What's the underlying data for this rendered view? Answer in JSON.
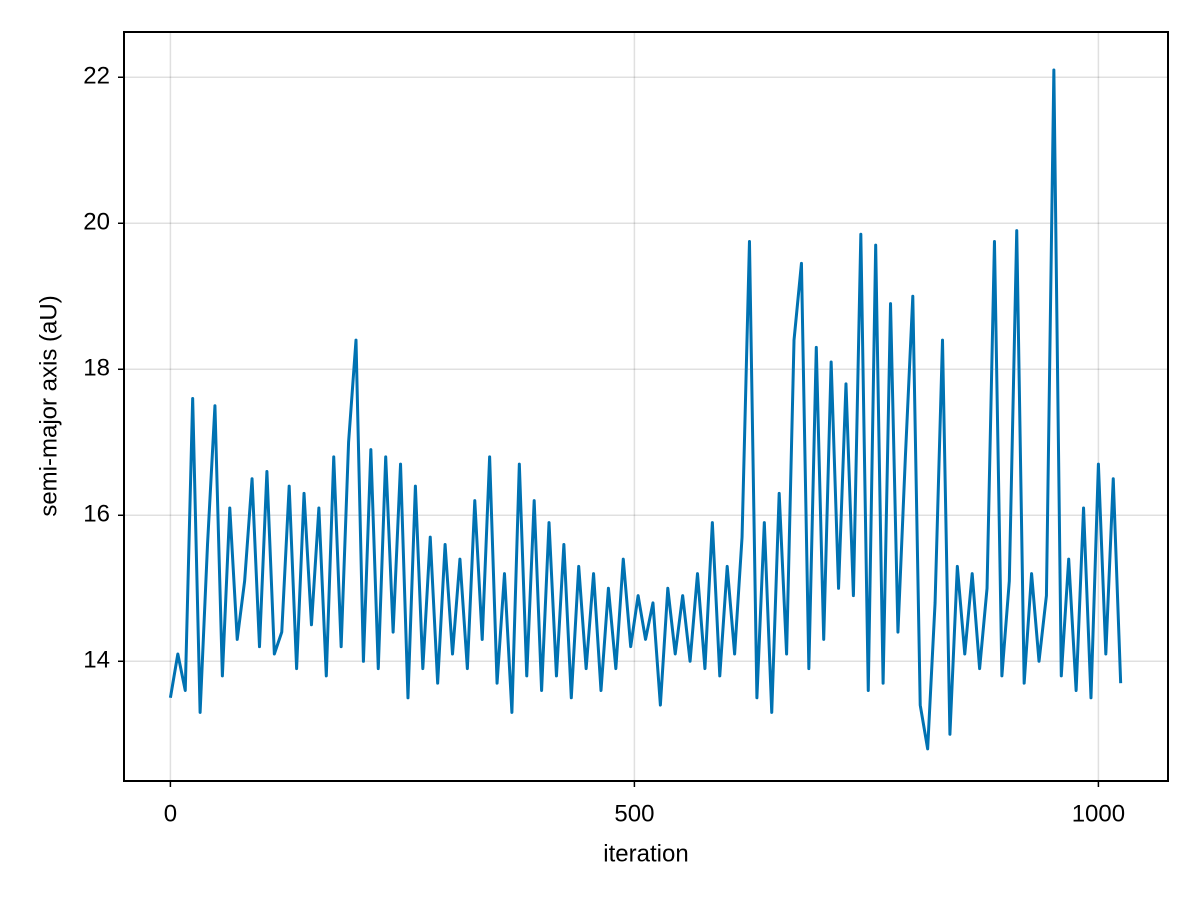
{
  "chart_data": {
    "type": "line",
    "xlabel": "iteration",
    "ylabel": "semi-major axis (aU)",
    "xlim": [
      -50,
      1075
    ],
    "ylim": [
      12.36,
      22.62
    ],
    "xticks": [
      0,
      500,
      1000
    ],
    "yticks": [
      14,
      16,
      18,
      20,
      22
    ],
    "grid": true,
    "series": [
      {
        "color": "#0072b2",
        "x": [
          0,
          8,
          16,
          24,
          32,
          40,
          48,
          56,
          64,
          72,
          80,
          88,
          96,
          104,
          112,
          120,
          128,
          136,
          144,
          152,
          160,
          168,
          176,
          184,
          192,
          200,
          208,
          216,
          224,
          232,
          240,
          248,
          256,
          264,
          272,
          280,
          288,
          296,
          304,
          312,
          320,
          328,
          336,
          344,
          352,
          360,
          368,
          376,
          384,
          392,
          400,
          408,
          416,
          424,
          432,
          440,
          448,
          456,
          464,
          472,
          480,
          488,
          496,
          504,
          512,
          520,
          528,
          536,
          544,
          552,
          560,
          568,
          576,
          584,
          592,
          600,
          608,
          616,
          624,
          632,
          640,
          648,
          656,
          664,
          672,
          680,
          688,
          696,
          704,
          712,
          720,
          728,
          736,
          744,
          752,
          760,
          768,
          776,
          784,
          792,
          800,
          808,
          816,
          824,
          832,
          840,
          848,
          856,
          864,
          872,
          880,
          888,
          896,
          904,
          912,
          920,
          928,
          936,
          944,
          952,
          960,
          968,
          976,
          984,
          992,
          1000,
          1008,
          1016,
          1024
        ],
        "values": [
          13.5,
          14.1,
          13.6,
          17.6,
          13.3,
          15.6,
          17.5,
          13.8,
          16.1,
          14.3,
          15.1,
          16.5,
          14.2,
          16.6,
          14.1,
          14.4,
          16.4,
          13.9,
          16.3,
          14.5,
          16.1,
          13.8,
          16.8,
          14.2,
          17.0,
          18.4,
          14.0,
          16.9,
          13.9,
          16.8,
          14.4,
          16.7,
          13.5,
          16.4,
          13.9,
          15.7,
          13.7,
          15.6,
          14.1,
          15.4,
          13.9,
          16.2,
          14.3,
          16.8,
          13.7,
          15.2,
          13.3,
          16.7,
          13.8,
          16.2,
          13.6,
          15.9,
          13.8,
          15.6,
          13.5,
          15.3,
          13.9,
          15.2,
          13.6,
          15.0,
          13.9,
          15.4,
          14.2,
          14.9,
          14.3,
          14.8,
          13.4,
          15.0,
          14.1,
          14.9,
          14.0,
          15.2,
          13.9,
          15.9,
          13.8,
          15.3,
          14.1,
          15.7,
          19.75,
          13.5,
          15.9,
          13.3,
          16.3,
          14.1,
          18.4,
          19.45,
          13.9,
          18.3,
          14.3,
          18.1,
          15.0,
          17.8,
          14.9,
          19.85,
          13.6,
          19.7,
          13.7,
          18.9,
          14.4,
          16.8,
          19.0,
          13.4,
          12.8,
          14.8,
          18.4,
          13.0,
          15.3,
          14.1,
          15.2,
          13.9,
          15.0,
          19.75,
          13.8,
          15.1,
          19.9,
          13.7,
          15.2,
          14.0,
          14.9,
          22.1,
          13.8,
          15.4,
          13.6,
          16.1,
          13.5,
          16.7,
          14.1,
          16.5,
          13.7
        ]
      }
    ]
  }
}
